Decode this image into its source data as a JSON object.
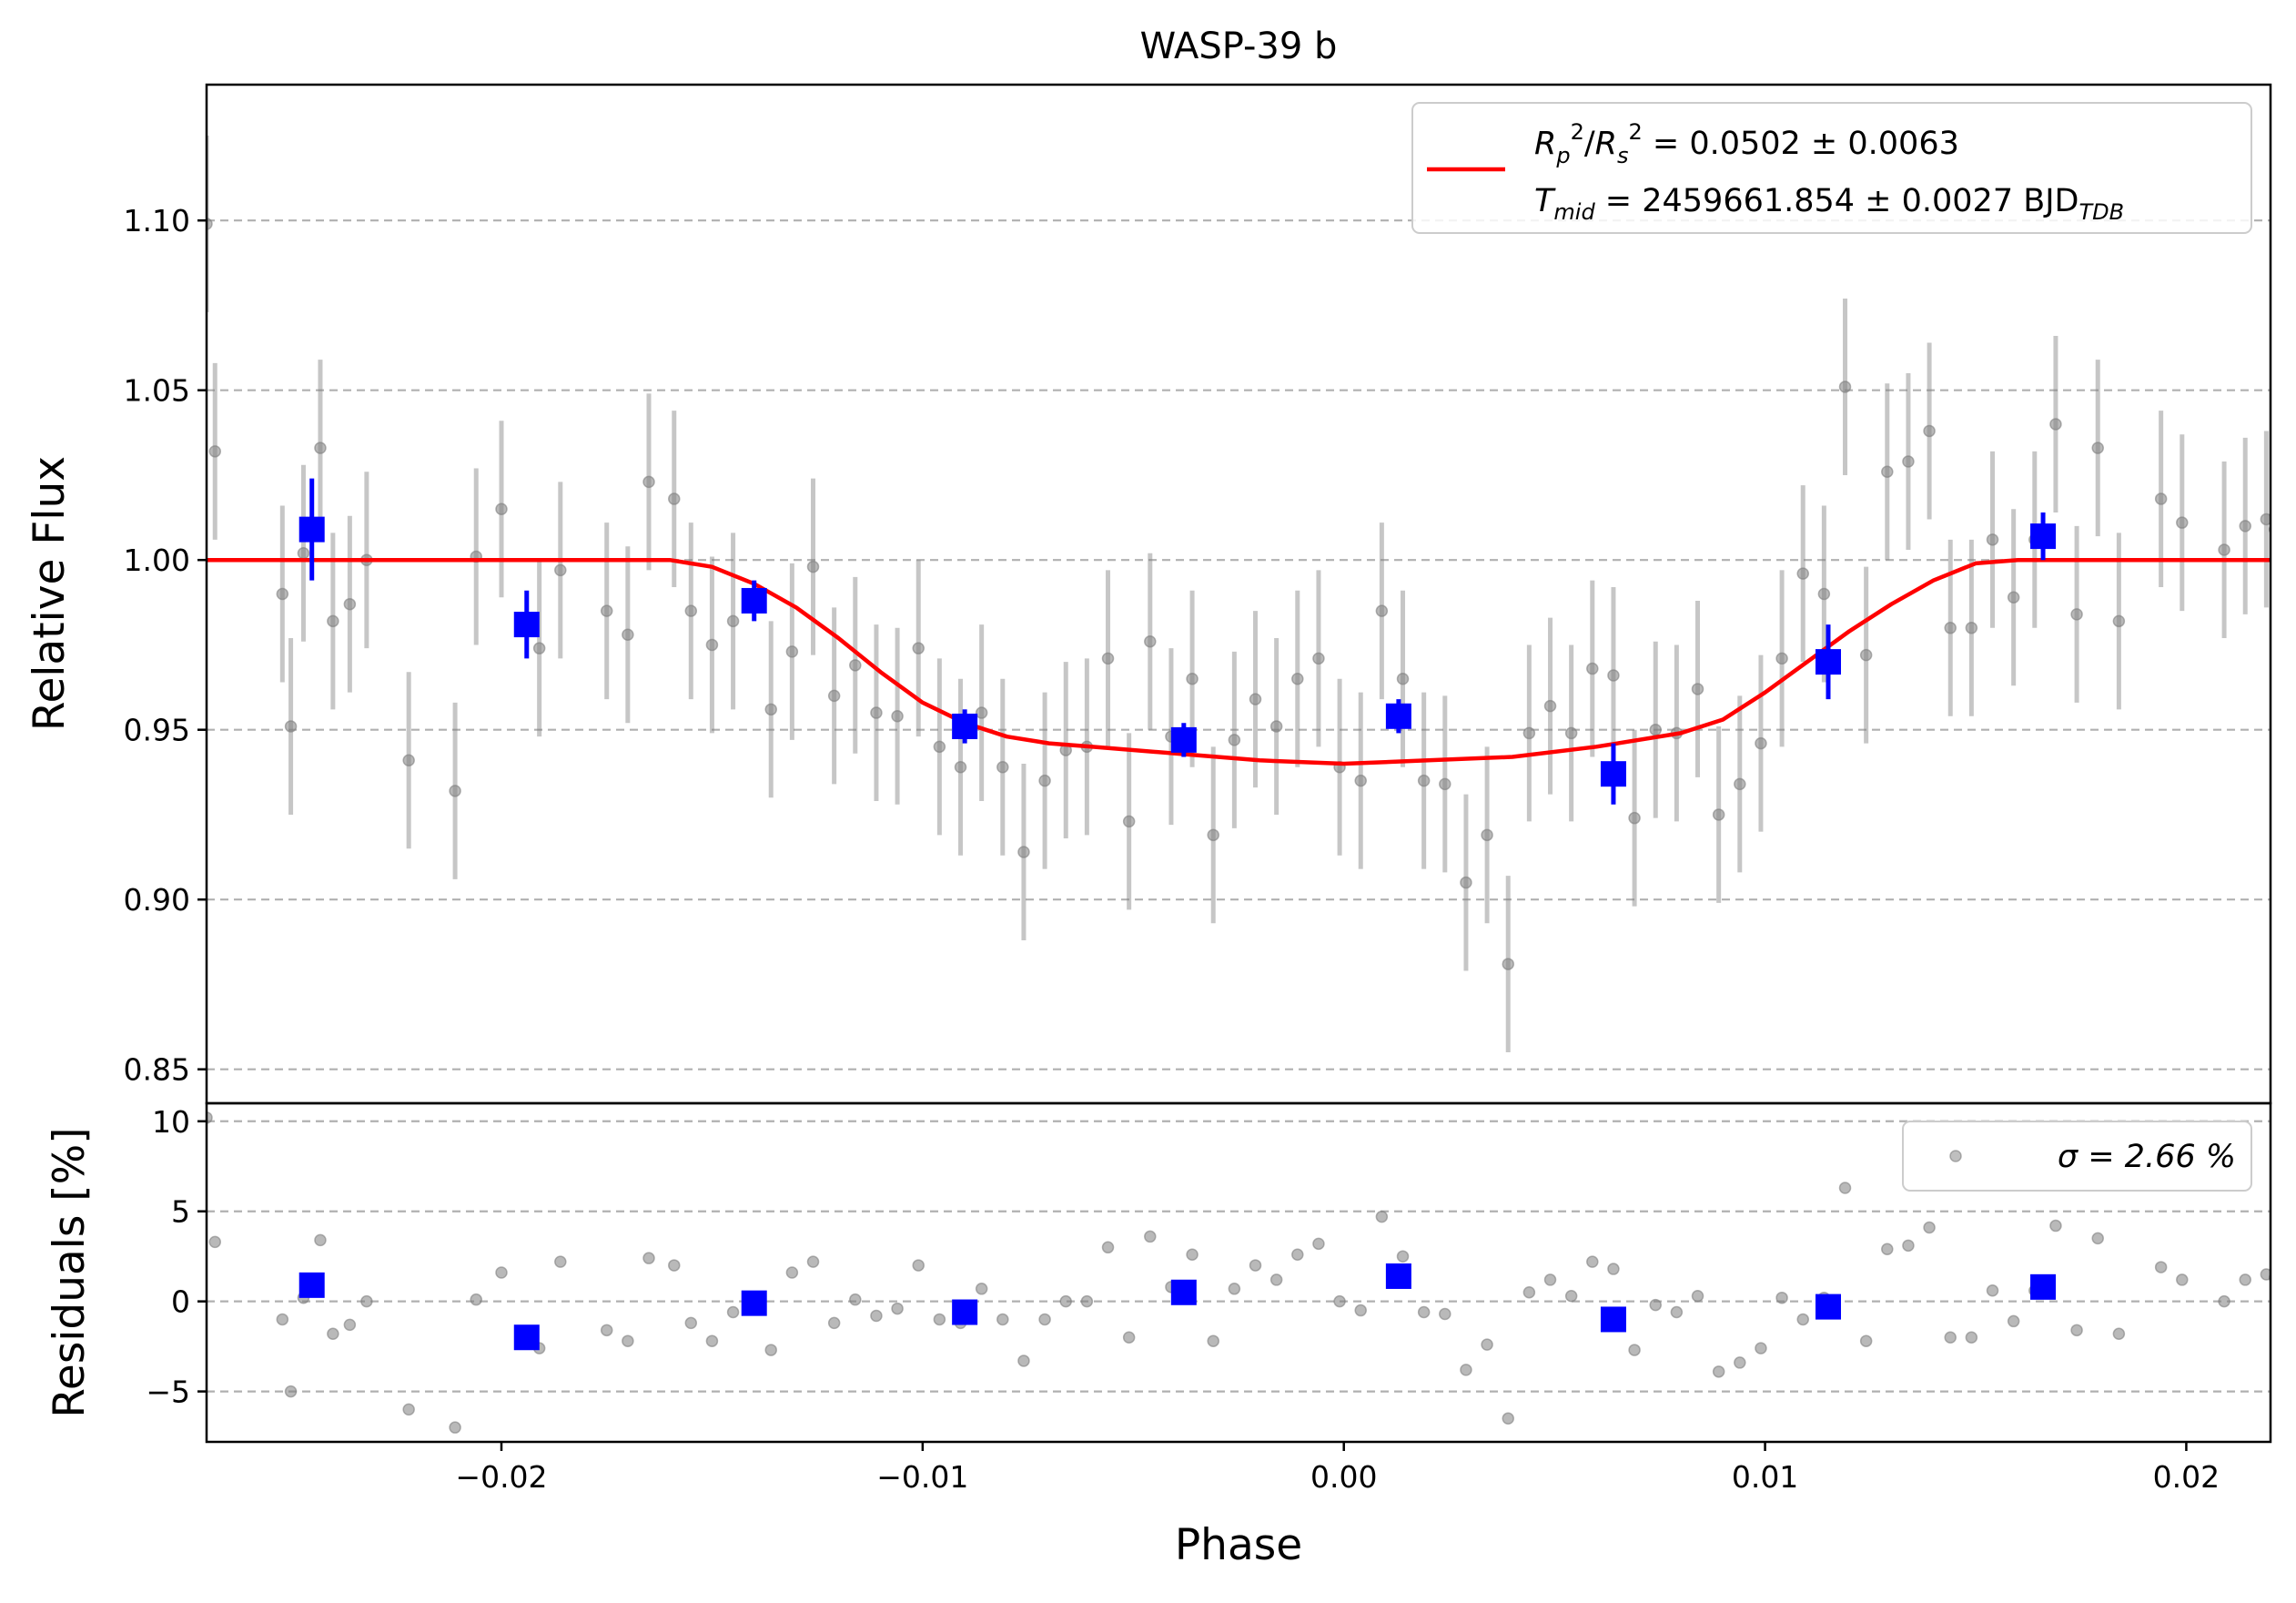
{
  "chart_data": [
    {
      "type": "scatter",
      "panel": "main",
      "title": "WASP-39 b",
      "xlabel": "",
      "ylabel": "Relative Flux",
      "xlim": [
        -0.027,
        0.022
      ],
      "ylim": [
        0.84,
        1.14
      ],
      "yticks": [
        {
          "value": 0.85,
          "label": "0.85"
        },
        {
          "value": 0.9,
          "label": "0.90"
        },
        {
          "value": 0.95,
          "label": "0.95"
        },
        {
          "value": 1.0,
          "label": "1.00"
        },
        {
          "value": 1.05,
          "label": "1.05"
        },
        {
          "value": 1.1,
          "label": "1.10"
        }
      ],
      "grid": "horizontal dashed",
      "legend": {
        "placement": "top-right",
        "entries": [
          {
            "label": "R_p^2/R_s^2 = 0.0502 ± 0.0063",
            "symbol": "red-line"
          },
          {
            "label": "T_mid = 2459661.854 ± 0.0027 BJD_TDB",
            "symbol": "none"
          }
        ]
      },
      "series": [
        {
          "name": "data",
          "style": "grey-dot-errorbar",
          "color": "#808080",
          "error": 0.026,
          "x": [
            -0.027,
            -0.0268,
            -0.0252,
            -0.025,
            -0.0247,
            -0.0243,
            -0.024,
            -0.0236,
            -0.0232,
            -0.0222,
            -0.0211,
            -0.0206,
            -0.02,
            -0.0191,
            -0.0186,
            -0.0175,
            -0.017,
            -0.0165,
            -0.0159,
            -0.0155,
            -0.015,
            -0.0145,
            -0.0136,
            -0.0131,
            -0.0126,
            -0.0121,
            -0.0116,
            -0.0111,
            -0.0106,
            -0.0101,
            -0.0096,
            -0.0091,
            -0.0086,
            -0.0081,
            -0.0076,
            -0.0071,
            -0.0066,
            -0.0061,
            -0.0056,
            -0.0051,
            -0.0046,
            -0.0041,
            -0.0036,
            -0.0031,
            -0.0026,
            -0.0021,
            -0.0016,
            -0.0011,
            -0.0006,
            -0.0001,
            0.0004,
            0.0009,
            0.0014,
            0.0019,
            0.0024,
            0.0029,
            0.0034,
            0.0039,
            0.0044,
            0.0049,
            0.0054,
            0.0059,
            0.0064,
            0.0069,
            0.0074,
            0.0079,
            0.0084,
            0.0089,
            0.0094,
            0.0099,
            0.0104,
            0.0109,
            0.0114,
            0.0119,
            0.0124,
            0.0129,
            0.0134,
            0.0139,
            0.0144,
            0.0149,
            0.0154,
            0.0159,
            0.0164,
            0.0169,
            0.0174,
            0.0179,
            0.0184,
            0.0194,
            0.0199,
            0.0209,
            0.0214,
            0.0219,
            0.0221
          ],
          "y": [
            1.099,
            1.032,
            0.99,
            0.951,
            1.002,
            1.033,
            0.982,
            0.987,
            1.0,
            0.941,
            0.932,
            1.001,
            1.015,
            0.974,
            0.997,
            0.985,
            0.978,
            1.023,
            1.018,
            0.985,
            0.975,
            0.982,
            0.956,
            0.973,
            0.998,
            0.96,
            0.969,
            0.955,
            0.954,
            0.974,
            0.945,
            0.939,
            0.955,
            0.939,
            0.914,
            0.935,
            0.944,
            0.945,
            0.971,
            0.923,
            0.976,
            0.948,
            0.965,
            0.919,
            0.947,
            0.959,
            0.951,
            0.965,
            0.971,
            0.939,
            0.935,
            0.985,
            0.965,
            0.935,
            0.934,
            0.905,
            0.919,
            0.881,
            0.949,
            0.957,
            0.949,
            0.968,
            0.966,
            0.924,
            0.95,
            0.949,
            0.962,
            0.925,
            0.934,
            0.946,
            0.971,
            0.996,
            0.99,
            1.051,
            0.972,
            1.026,
            1.029,
            1.038,
            0.98,
            0.98,
            1.006,
            0.989,
            1.006,
            1.04,
            0.984,
            1.033,
            0.982,
            1.018,
            1.011,
            1.003,
            1.01,
            1.012,
            1.009
          ]
        },
        {
          "name": "binned",
          "style": "blue-square-errorbar",
          "color": "#0000ff",
          "x": [
            -0.0245,
            -0.0194,
            -0.014,
            -0.009,
            -0.0038,
            0.0013,
            0.0064,
            0.0115,
            0.0166
          ],
          "y": [
            1.009,
            0.981,
            0.988,
            0.951,
            0.947,
            0.954,
            0.937,
            0.97,
            1.007
          ],
          "yerr": [
            0.015,
            0.01,
            0.006,
            0.005,
            0.005,
            0.005,
            0.009,
            0.011,
            0.007
          ]
        },
        {
          "name": "transit model",
          "style": "line",
          "color": "#ff0000",
          "x": [
            -0.027,
            -0.016,
            -0.015,
            -0.014,
            -0.013,
            -0.012,
            -0.011,
            -0.01,
            -0.009,
            -0.008,
            -0.007,
            -0.006,
            -0.004,
            -0.002,
            0.0,
            0.002,
            0.004,
            0.006,
            0.008,
            0.009,
            0.01,
            0.011,
            0.012,
            0.013,
            0.014,
            0.015,
            0.016,
            0.022
          ],
          "y": [
            1.0,
            1.0,
            0.998,
            0.993,
            0.986,
            0.977,
            0.967,
            0.958,
            0.952,
            0.948,
            0.946,
            0.945,
            0.943,
            0.941,
            0.94,
            0.941,
            0.942,
            0.945,
            0.949,
            0.953,
            0.961,
            0.97,
            0.979,
            0.987,
            0.994,
            0.999,
            1.0,
            1.0
          ]
        }
      ]
    },
    {
      "type": "scatter",
      "panel": "residuals",
      "title": "",
      "xlabel": "Phase",
      "ylabel": "Residuals [%]",
      "xlim": [
        -0.027,
        0.022
      ],
      "ylim": [
        -7.8,
        11.0
      ],
      "xticks": [
        {
          "value": -0.02,
          "label": "−0.02"
        },
        {
          "value": -0.01,
          "label": "−0.01"
        },
        {
          "value": 0.0,
          "label": "0.00"
        },
        {
          "value": 0.01,
          "label": "0.01"
        },
        {
          "value": 0.02,
          "label": "0.02"
        }
      ],
      "yticks": [
        {
          "value": -5,
          "label": "−5"
        },
        {
          "value": 0,
          "label": "0"
        },
        {
          "value": 5,
          "label": "5"
        },
        {
          "value": 10,
          "label": "10"
        }
      ],
      "grid": "horizontal dashed",
      "legend": {
        "placement": "top-right",
        "entries": [
          {
            "label": "σ = 2.66 %",
            "symbol": "grey-dot"
          }
        ]
      },
      "series": [
        {
          "name": "residuals",
          "style": "grey-dot",
          "color": "#808080",
          "x": [
            -0.027,
            -0.0268,
            -0.0252,
            -0.025,
            -0.0247,
            -0.0243,
            -0.024,
            -0.0236,
            -0.0232,
            -0.0222,
            -0.0211,
            -0.0206,
            -0.02,
            -0.0191,
            -0.0186,
            -0.0175,
            -0.017,
            -0.0165,
            -0.0159,
            -0.0155,
            -0.015,
            -0.0145,
            -0.0136,
            -0.0131,
            -0.0126,
            -0.0121,
            -0.0116,
            -0.0111,
            -0.0106,
            -0.0101,
            -0.0096,
            -0.0091,
            -0.0086,
            -0.0081,
            -0.0076,
            -0.0071,
            -0.0066,
            -0.0061,
            -0.0056,
            -0.0051,
            -0.0046,
            -0.0041,
            -0.0036,
            -0.0031,
            -0.0026,
            -0.0021,
            -0.0016,
            -0.0011,
            -0.0006,
            -0.0001,
            0.0004,
            0.0009,
            0.0014,
            0.0019,
            0.0024,
            0.0029,
            0.0034,
            0.0039,
            0.0044,
            0.0049,
            0.0054,
            0.0059,
            0.0064,
            0.0069,
            0.0074,
            0.0079,
            0.0084,
            0.0089,
            0.0094,
            0.0099,
            0.0104,
            0.0109,
            0.0114,
            0.0119,
            0.0124,
            0.0129,
            0.0134,
            0.0139,
            0.0144,
            0.0149,
            0.0154,
            0.0159,
            0.0164,
            0.0169,
            0.0174,
            0.0179,
            0.0184,
            0.0194,
            0.0199,
            0.0209,
            0.0214,
            0.0219,
            0.0221
          ],
          "y": [
            10.2,
            3.3,
            -1.0,
            -5.0,
            0.2,
            3.4,
            -1.8,
            -1.3,
            0.0,
            -6.0,
            -7.0,
            0.1,
            1.6,
            -2.6,
            2.2,
            -1.6,
            -2.2,
            2.4,
            2.0,
            -1.2,
            -2.2,
            -0.6,
            -2.7,
            1.6,
            2.2,
            -1.2,
            0.1,
            -0.8,
            -0.4,
            2.0,
            -1.0,
            -1.2,
            0.7,
            -1.0,
            -3.3,
            -1.0,
            0.0,
            0.0,
            3.0,
            -2.0,
            3.6,
            0.8,
            2.6,
            -2.2,
            0.7,
            2.0,
            1.2,
            2.6,
            3.2,
            0.0,
            -0.5,
            4.7,
            2.5,
            -0.6,
            -0.7,
            -3.8,
            -2.4,
            -6.5,
            0.5,
            1.2,
            0.3,
            2.2,
            1.8,
            -2.7,
            -0.2,
            -0.6,
            0.3,
            -3.9,
            -3.4,
            -2.6,
            0.2,
            -1.0,
            0.2,
            6.3,
            -2.2,
            2.9,
            3.1,
            4.1,
            -2.0,
            -2.0,
            0.6,
            -1.1,
            0.6,
            4.2,
            -1.6,
            3.5,
            -1.8,
            1.9,
            1.2,
            0.0,
            1.2,
            1.5,
            1.3
          ]
        },
        {
          "name": "binned residuals",
          "style": "blue-square",
          "color": "#0000ff",
          "x": [
            -0.0245,
            -0.0194,
            -0.014,
            -0.009,
            -0.0038,
            0.0013,
            0.0064,
            0.0115,
            0.0166
          ],
          "y": [
            0.9,
            -2.0,
            -0.1,
            -0.6,
            0.5,
            1.4,
            -1.0,
            -0.3,
            0.8
          ]
        }
      ]
    }
  ]
}
